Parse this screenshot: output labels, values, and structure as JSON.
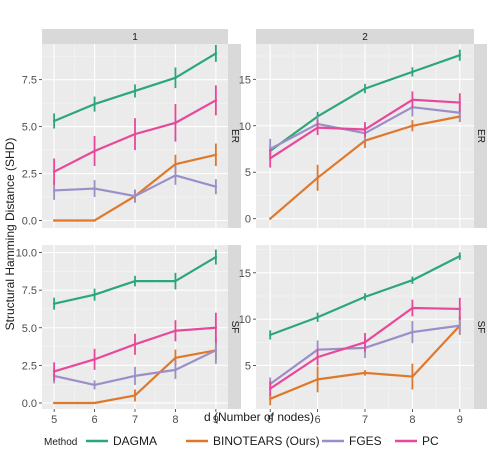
{
  "chart_data": {
    "type": "line",
    "xlabel": "d (Number of nodes)",
    "ylabel": "Structural Hamming Distance (SHD)",
    "x": [
      5,
      6,
      7,
      8,
      9
    ],
    "col_strips": [
      "1",
      "2"
    ],
    "row_strips": [
      "ER",
      "SF"
    ],
    "legend": {
      "title": "Method",
      "position": "bottom",
      "entries": [
        {
          "name": "DAGMA",
          "color": "#2ca77a"
        },
        {
          "name": "BINOTEARS (Ours)",
          "color": "#e0782c"
        },
        {
          "name": "FGES",
          "color": "#9b8fc8"
        },
        {
          "name": "PC",
          "color": "#e8489a"
        }
      ]
    },
    "panels": [
      {
        "col": 0,
        "row": 0,
        "ylim": [
          -0.4,
          9.4
        ],
        "yticks": [
          0,
          2.5,
          5,
          7.5
        ],
        "ytick_labels": [
          "0.0",
          "2.5",
          "5.0",
          "7.5"
        ],
        "series": [
          {
            "name": "DAGMA",
            "color": "#2ca77a",
            "values": [
              5.3,
              6.2,
              6.9,
              7.6,
              8.9
            ],
            "err": [
              0.4,
              0.4,
              0.35,
              0.55,
              0.45
            ]
          },
          {
            "name": "BINOTEARS (Ours)",
            "color": "#e0782c",
            "values": [
              0.0,
              0.0,
              1.3,
              3.0,
              3.5
            ],
            "err": [
              0,
              0,
              0.35,
              0.5,
              0.6
            ]
          },
          {
            "name": "FGES",
            "color": "#9b8fc8",
            "values": [
              1.6,
              1.7,
              1.3,
              2.4,
              1.8
            ],
            "err": [
              0.5,
              0.45,
              0.35,
              0.5,
              0.4
            ]
          },
          {
            "name": "PC",
            "color": "#e8489a",
            "values": [
              2.6,
              3.7,
              4.6,
              5.2,
              6.4
            ],
            "err": [
              0.7,
              0.8,
              0.85,
              1.0,
              0.8
            ]
          }
        ]
      },
      {
        "col": 1,
        "row": 0,
        "ylim": [
          -1,
          18.8
        ],
        "yticks": [
          0,
          5,
          10,
          15
        ],
        "ytick_labels": [
          "0",
          "5",
          "10",
          "15"
        ],
        "series": [
          {
            "name": "DAGMA",
            "color": "#2ca77a",
            "values": [
              7.3,
              11.0,
              14.0,
              15.8,
              17.6
            ],
            "err": [
              0.5,
              0.5,
              0.5,
              0.5,
              0.6
            ]
          },
          {
            "name": "BINOTEARS (Ours)",
            "color": "#e0782c",
            "values": [
              0.0,
              4.4,
              8.4,
              10.0,
              11.0
            ],
            "err": [
              0,
              1.4,
              0.8,
              0.6,
              0.6
            ]
          },
          {
            "name": "FGES",
            "color": "#9b8fc8",
            "values": [
              7.5,
              10.2,
              9.2,
              12.0,
              11.4
            ],
            "err": [
              1.1,
              0.8,
              0.8,
              1.0,
              1.0
            ]
          },
          {
            "name": "PC",
            "color": "#e8489a",
            "values": [
              6.5,
              9.8,
              9.6,
              12.8,
              12.5
            ],
            "err": [
              1.0,
              0.8,
              0.8,
              0.9,
              1.0
            ]
          }
        ]
      },
      {
        "col": 0,
        "row": 1,
        "ylim": [
          -0.4,
          10.5
        ],
        "yticks": [
          0,
          2.5,
          5,
          7.5,
          10
        ],
        "ytick_labels": [
          "0.0",
          "2.5",
          "5.0",
          "7.5",
          "10.0"
        ],
        "series": [
          {
            "name": "DAGMA",
            "color": "#2ca77a",
            "values": [
              6.6,
              7.2,
              8.1,
              8.1,
              9.7
            ],
            "err": [
              0.4,
              0.4,
              0.35,
              0.55,
              0.5
            ]
          },
          {
            "name": "BINOTEARS (Ours)",
            "color": "#e0782c",
            "values": [
              0.0,
              0.0,
              0.5,
              3.0,
              3.5
            ],
            "err": [
              0,
              0,
              0.4,
              0.55,
              0.6
            ]
          },
          {
            "name": "FGES",
            "color": "#9b8fc8",
            "values": [
              1.8,
              1.2,
              1.8,
              2.2,
              3.5
            ],
            "err": [
              0.5,
              0.3,
              0.6,
              0.6,
              0.9
            ]
          },
          {
            "name": "PC",
            "color": "#e8489a",
            "values": [
              2.1,
              2.9,
              3.9,
              4.8,
              5.0
            ],
            "err": [
              0.6,
              0.7,
              0.7,
              0.7,
              1.0
            ]
          }
        ]
      },
      {
        "col": 1,
        "row": 1,
        "ylim": [
          0.3,
          18.0
        ],
        "yticks": [
          5,
          10,
          15
        ],
        "ytick_labels": [
          "5",
          "10",
          "15"
        ],
        "series": [
          {
            "name": "DAGMA",
            "color": "#2ca77a",
            "values": [
              8.3,
              10.2,
              12.4,
              14.2,
              16.8
            ],
            "err": [
              0.5,
              0.5,
              0.4,
              0.4,
              0.4
            ]
          },
          {
            "name": "BINOTEARS (Ours)",
            "color": "#e0782c",
            "values": [
              1.4,
              3.5,
              4.2,
              3.8,
              9.3
            ],
            "err": [
              0.7,
              1.4,
              0.3,
              1.4,
              1.0
            ]
          },
          {
            "name": "FGES",
            "color": "#9b8fc8",
            "values": [
              3.0,
              6.7,
              6.9,
              8.6,
              9.3
            ],
            "err": [
              0.7,
              1.0,
              1.1,
              1.2,
              1.0
            ]
          },
          {
            "name": "PC",
            "color": "#e8489a",
            "values": [
              2.5,
              5.9,
              7.5,
              11.2,
              11.1
            ],
            "err": [
              0.8,
              0.9,
              1.0,
              0.9,
              1.2
            ]
          }
        ]
      }
    ]
  }
}
